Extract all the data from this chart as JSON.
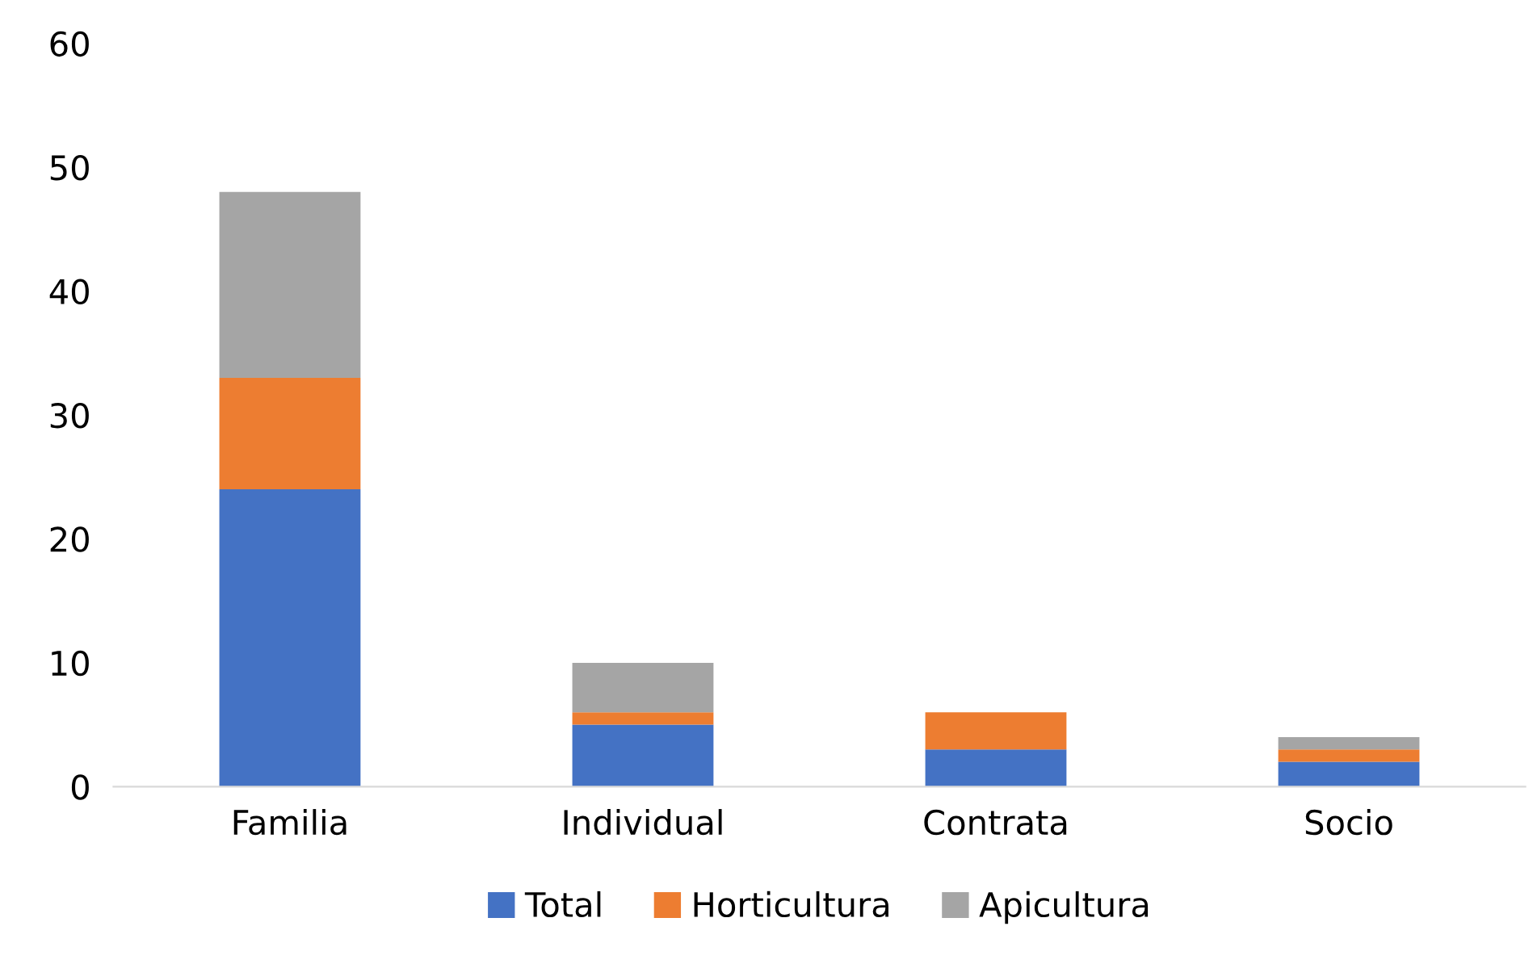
{
  "chart_data": {
    "type": "bar",
    "stacked": true,
    "categories": [
      "Familia",
      "Individual",
      "Contrata",
      "Socio"
    ],
    "series": [
      {
        "name": "Total",
        "color": "#4472c4",
        "values": [
          24,
          5,
          3,
          2
        ]
      },
      {
        "name": "Horticultura",
        "color": "#ed7d31",
        "values": [
          9,
          1,
          3,
          1
        ]
      },
      {
        "name": "Apicultura",
        "color": "#a5a5a5",
        "values": [
          15,
          4,
          0,
          1
        ]
      }
    ],
    "ylim": [
      0,
      60
    ],
    "yticks": [
      0,
      10,
      20,
      30,
      40,
      50,
      60
    ],
    "grid": false,
    "legend": "bottom"
  }
}
